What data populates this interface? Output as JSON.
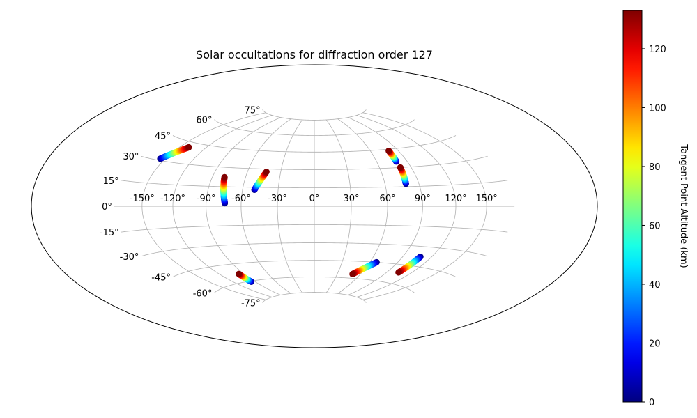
{
  "chart_data": {
    "type": "scatter",
    "projection": "hammer",
    "title": "Solar occultations for diffraction order 127",
    "xlabel": "",
    "ylabel": "",
    "lon_ticks": [
      -150,
      -120,
      -90,
      -60,
      -30,
      0,
      30,
      60,
      90,
      120,
      150
    ],
    "lon_tick_labels": [
      "-150°",
      "-120°",
      "-90°",
      "-60°",
      "-30°",
      "0°",
      "30°",
      "60°",
      "90°",
      "120°",
      "150°"
    ],
    "lat_ticks": [
      75,
      60,
      45,
      30,
      15,
      0,
      -15,
      -30,
      -45,
      -60,
      -75
    ],
    "lat_tick_labels": [
      "75°",
      "60°",
      "45°",
      "30°",
      "15°",
      "0°",
      "-15°",
      "-30°",
      "-45°",
      "-60°",
      "-75°"
    ],
    "grid": true,
    "colormap": "jet",
    "colorbar": {
      "label": "Tangent Point Altitude (km)",
      "range": [
        0,
        133
      ],
      "ticks": [
        0,
        20,
        40,
        60,
        80,
        100,
        120
      ],
      "tick_labels": [
        "0",
        "20",
        "40",
        "60",
        "80",
        "100",
        "120"
      ],
      "placement": "right"
    },
    "series": [
      {
        "lon": [
          -155.6,
          -139.5
        ],
        "lat": [
          31.1,
          41.4
        ],
        "alt": [
          0,
          133
        ]
      },
      {
        "lon": [
          -73.8,
          -78.9
        ],
        "lat": [
          2.3,
          22.4
        ],
        "alt": [
          0,
          133
        ]
      },
      {
        "lon": [
          -49.9,
          -42.8
        ],
        "lat": [
          13.0,
          27.7
        ],
        "alt": [
          0,
          133
        ]
      },
      {
        "lon": [
          79.2,
          79.7
        ],
        "lat": [
          34.8,
          43.7
        ],
        "alt": [
          0,
          133
        ]
      },
      {
        "lon": [
          78.4,
          79.7
        ],
        "lat": [
          17.2,
          30.1
        ],
        "alt": [
          0,
          133
        ]
      },
      {
        "lon": [
          -95.5,
          -96.4
        ],
        "lat": [
          -60.6,
          -53.2
        ],
        "alt": [
          0,
          133
        ]
      },
      {
        "lon": [
          67.3,
          49.8
        ],
        "lat": [
          -44.9,
          -56.3
        ],
        "alt": [
          0,
          133
        ]
      },
      {
        "lon": [
          108.3,
          104.3
        ],
        "lat": [
          -37.7,
          -51.2
        ],
        "alt": [
          0,
          133
        ]
      }
    ]
  }
}
